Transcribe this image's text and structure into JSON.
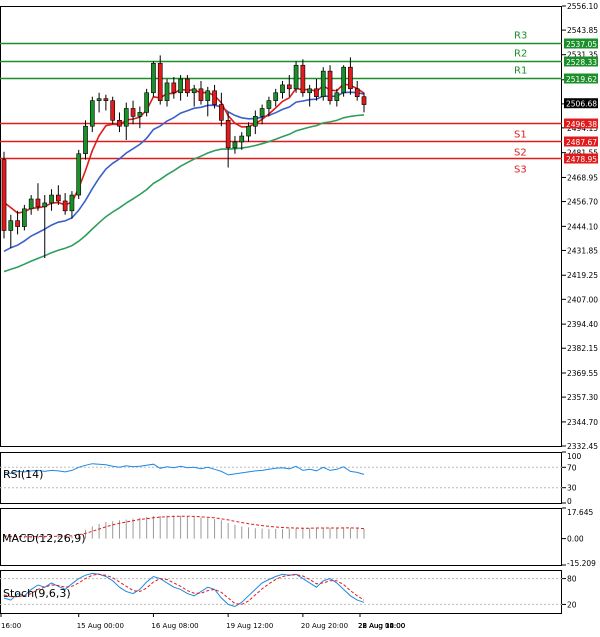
{
  "chart_data": {
    "type": "candlestick",
    "instrument_note": "",
    "price_axis": {
      "ylim": [
        2332.45,
        2556.1
      ],
      "ticks": [
        2556.1,
        2543.85,
        2531.35,
        2518.6,
        2506.35,
        2494.15,
        2481.55,
        2468.95,
        2456.7,
        2444.1,
        2431.85,
        2419.25,
        2407.0,
        2394.4,
        2382.15,
        2369.55,
        2357.3,
        2344.7,
        2332.45
      ],
      "tick_labels": [
        "2556.10",
        "2543.85",
        "2531.35",
        "2518.60",
        "2506.35",
        "2494.15",
        "2481.55",
        "2468.95",
        "2456.70",
        "2444.10",
        "2431.85",
        "2419.25",
        "2407.00",
        "2394.40",
        "2382.15",
        "2369.55",
        "2357.30",
        "2344.70",
        "2332.45"
      ]
    },
    "x_axis": {
      "tick_labels": [
        "16:00",
        "15 Aug 00:00",
        "16 Aug 08:00",
        "19 Aug 12:00",
        "20 Aug 20:00",
        "22 Aug 04:00",
        "23 Aug 12:00",
        "26 Aug 16:00",
        "28 Aug 00:00"
      ],
      "tick_bar_index": [
        0,
        11,
        22,
        33,
        44,
        55,
        66,
        77,
        88
      ]
    },
    "levels": [
      {
        "name": "R3",
        "value": 2537.05,
        "color": "#1a8f2a",
        "label": "2537.05"
      },
      {
        "name": "R2",
        "value": 2528.33,
        "color": "#1a8f2a",
        "label": "2528.33"
      },
      {
        "name": "R1",
        "value": 2519.62,
        "color": "#1a8f2a",
        "label": "2519.62"
      },
      {
        "name": "S1",
        "value": 2496.38,
        "color": "#e01b1b",
        "label": "2496.38"
      },
      {
        "name": "S2",
        "value": 2487.67,
        "color": "#e01b1b",
        "label": "2487.67"
      },
      {
        "name": "S3",
        "value": 2478.95,
        "color": "#e01b1b",
        "label": "2478.95"
      }
    ],
    "current_price": {
      "value": 2506.68,
      "label": "2506.68"
    },
    "candles": [
      {
        "o": 2478,
        "h": 2482,
        "l": 2438,
        "c": 2442
      },
      {
        "o": 2442,
        "h": 2450,
        "l": 2433,
        "c": 2447
      },
      {
        "o": 2447,
        "h": 2452,
        "l": 2440,
        "c": 2444
      },
      {
        "o": 2444,
        "h": 2455,
        "l": 2442,
        "c": 2453
      },
      {
        "o": 2453,
        "h": 2460,
        "l": 2450,
        "c": 2458
      },
      {
        "o": 2458,
        "h": 2466,
        "l": 2452,
        "c": 2454
      },
      {
        "o": 2454,
        "h": 2460,
        "l": 2428,
        "c": 2456
      },
      {
        "o": 2456,
        "h": 2463,
        "l": 2452,
        "c": 2460
      },
      {
        "o": 2460,
        "h": 2465,
        "l": 2455,
        "c": 2457
      },
      {
        "o": 2457,
        "h": 2461,
        "l": 2450,
        "c": 2452
      },
      {
        "o": 2452,
        "h": 2462,
        "l": 2448,
        "c": 2460
      },
      {
        "o": 2460,
        "h": 2483,
        "l": 2458,
        "c": 2481
      },
      {
        "o": 2481,
        "h": 2498,
        "l": 2478,
        "c": 2495
      },
      {
        "o": 2495,
        "h": 2510,
        "l": 2492,
        "c": 2508
      },
      {
        "o": 2508,
        "h": 2512,
        "l": 2502,
        "c": 2509
      },
      {
        "o": 2509,
        "h": 2511,
        "l": 2503,
        "c": 2508
      },
      {
        "o": 2508,
        "h": 2510,
        "l": 2496,
        "c": 2498
      },
      {
        "o": 2498,
        "h": 2502,
        "l": 2492,
        "c": 2495
      },
      {
        "o": 2495,
        "h": 2507,
        "l": 2488,
        "c": 2504
      },
      {
        "o": 2504,
        "h": 2508,
        "l": 2496,
        "c": 2500
      },
      {
        "o": 2500,
        "h": 2505,
        "l": 2494,
        "c": 2502
      },
      {
        "o": 2502,
        "h": 2514,
        "l": 2500,
        "c": 2512
      },
      {
        "o": 2512,
        "h": 2528,
        "l": 2510,
        "c": 2527
      },
      {
        "o": 2527,
        "h": 2531,
        "l": 2506,
        "c": 2508
      },
      {
        "o": 2508,
        "h": 2519,
        "l": 2505,
        "c": 2517
      },
      {
        "o": 2517,
        "h": 2520,
        "l": 2509,
        "c": 2512
      },
      {
        "o": 2512,
        "h": 2521,
        "l": 2508,
        "c": 2519
      },
      {
        "o": 2519,
        "h": 2521,
        "l": 2510,
        "c": 2512
      },
      {
        "o": 2512,
        "h": 2516,
        "l": 2505,
        "c": 2514
      },
      {
        "o": 2514,
        "h": 2518,
        "l": 2506,
        "c": 2508
      },
      {
        "o": 2508,
        "h": 2515,
        "l": 2500,
        "c": 2513
      },
      {
        "o": 2513,
        "h": 2516,
        "l": 2504,
        "c": 2506
      },
      {
        "o": 2506,
        "h": 2512,
        "l": 2495,
        "c": 2498
      },
      {
        "o": 2498,
        "h": 2502,
        "l": 2474,
        "c": 2484
      },
      {
        "o": 2484,
        "h": 2490,
        "l": 2481,
        "c": 2487
      },
      {
        "o": 2487,
        "h": 2492,
        "l": 2483,
        "c": 2490
      },
      {
        "o": 2490,
        "h": 2497,
        "l": 2487,
        "c": 2495
      },
      {
        "o": 2495,
        "h": 2503,
        "l": 2491,
        "c": 2500
      },
      {
        "o": 2500,
        "h": 2506,
        "l": 2496,
        "c": 2504
      },
      {
        "o": 2504,
        "h": 2510,
        "l": 2500,
        "c": 2508
      },
      {
        "o": 2508,
        "h": 2514,
        "l": 2505,
        "c": 2512
      },
      {
        "o": 2512,
        "h": 2518,
        "l": 2509,
        "c": 2516
      },
      {
        "o": 2516,
        "h": 2521,
        "l": 2510,
        "c": 2514
      },
      {
        "o": 2514,
        "h": 2528,
        "l": 2512,
        "c": 2526
      },
      {
        "o": 2526,
        "h": 2529,
        "l": 2510,
        "c": 2512
      },
      {
        "o": 2512,
        "h": 2516,
        "l": 2505,
        "c": 2514
      },
      {
        "o": 2514,
        "h": 2519,
        "l": 2508,
        "c": 2510
      },
      {
        "o": 2510,
        "h": 2525,
        "l": 2508,
        "c": 2523
      },
      {
        "o": 2523,
        "h": 2526,
        "l": 2506,
        "c": 2508
      },
      {
        "o": 2508,
        "h": 2514,
        "l": 2505,
        "c": 2512
      },
      {
        "o": 2512,
        "h": 2526,
        "l": 2510,
        "c": 2525
      },
      {
        "o": 2525,
        "h": 2530,
        "l": 2511,
        "c": 2514
      },
      {
        "o": 2514,
        "h": 2518,
        "l": 2508,
        "c": 2510
      },
      {
        "o": 2510,
        "h": 2512,
        "l": 2502,
        "c": 2506
      }
    ]
  },
  "indicators": {
    "rsi": {
      "label": "RSI(14)",
      "ylim": [
        0,
        100
      ],
      "ticks": [
        100,
        70,
        30,
        0
      ],
      "tick_labels": [
        "100",
        "70",
        "30",
        "0"
      ],
      "values": [
        60,
        58,
        62,
        61,
        63,
        64,
        62,
        64,
        63,
        61,
        64,
        70,
        74,
        77,
        76,
        75,
        72,
        70,
        73,
        71,
        72,
        74,
        76,
        68,
        71,
        69,
        72,
        69,
        70,
        67,
        70,
        66,
        62,
        55,
        57,
        59,
        61,
        63,
        64,
        66,
        68,
        69,
        67,
        72,
        64,
        66,
        63,
        70,
        64,
        66,
        71,
        62,
        60,
        56
      ]
    },
    "macd": {
      "label": "MACD(12,26,9)",
      "ylim": [
        -15.209,
        17.645
      ],
      "ticks": [
        17.645,
        0.0,
        -15.209
      ],
      "tick_labels": [
        "17.645",
        "0.00",
        "-15.209"
      ],
      "histogram": [
        1,
        1,
        0.5,
        0.8,
        1.2,
        1.5,
        1.3,
        1.5,
        1.6,
        1.4,
        1.8,
        3,
        5,
        7,
        8.5,
        9.5,
        10,
        10.5,
        11,
        11.5,
        12,
        12.5,
        13,
        13,
        13.2,
        13.3,
        13.2,
        13,
        12.6,
        12.2,
        11.8,
        11.2,
        10.5,
        9,
        8,
        7,
        6.5,
        6,
        5.8,
        5.6,
        5.6,
        5.5,
        5.8,
        6,
        6,
        6.2,
        6.2,
        6.4,
        6.2,
        6.2,
        6.4,
        6.2,
        6,
        5.6
      ],
      "signal": [
        1.5,
        1.3,
        1.2,
        1.1,
        1.1,
        1.2,
        1.3,
        1.3,
        1.4,
        1.5,
        1.6,
        2.2,
        3,
        4.2,
        5.5,
        6.8,
        7.9,
        8.8,
        9.6,
        10.3,
        11,
        11.5,
        12,
        12.4,
        12.6,
        12.8,
        12.9,
        12.9,
        12.8,
        12.6,
        12.3,
        12,
        11.4,
        10.8,
        10,
        9.3,
        8.6,
        8,
        7.5,
        7.1,
        6.7,
        6.4,
        6.2,
        6.1,
        6,
        6,
        6.1,
        6.1,
        6.1,
        6.1,
        6.2,
        6.2,
        6.1,
        5.8
      ]
    },
    "stoch": {
      "label": "Stoch(9,6,3)",
      "ylim": [
        0,
        100
      ],
      "ticks": [
        80,
        20
      ],
      "tick_labels": [
        "80",
        "20"
      ],
      "k": [
        35,
        30,
        45,
        40,
        55,
        65,
        60,
        70,
        62,
        55,
        68,
        80,
        88,
        92,
        90,
        85,
        75,
        60,
        50,
        45,
        55,
        72,
        85,
        80,
        70,
        60,
        55,
        45,
        40,
        50,
        60,
        55,
        35,
        20,
        15,
        25,
        40,
        55,
        70,
        78,
        85,
        90,
        88,
        90,
        80,
        70,
        60,
        75,
        80,
        70,
        55,
        40,
        30,
        25
      ],
      "d": [
        42,
        38,
        38,
        40,
        45,
        55,
        60,
        65,
        64,
        60,
        62,
        70,
        80,
        88,
        90,
        88,
        82,
        72,
        62,
        52,
        50,
        58,
        72,
        80,
        78,
        70,
        62,
        52,
        46,
        46,
        52,
        55,
        48,
        35,
        22,
        20,
        28,
        42,
        56,
        68,
        78,
        85,
        88,
        89,
        86,
        78,
        68,
        70,
        75,
        75,
        66,
        52,
        40,
        30
      ]
    }
  }
}
